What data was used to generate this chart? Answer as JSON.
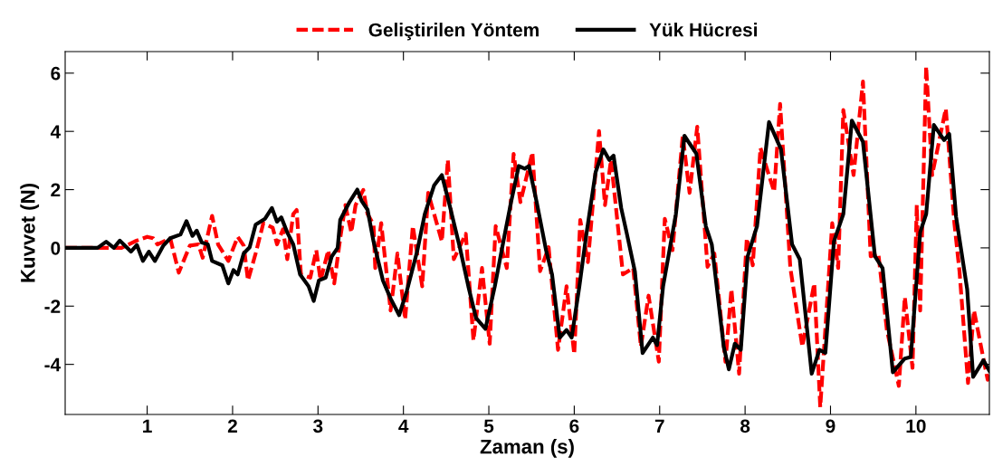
{
  "chart_data": {
    "type": "line",
    "xlabel": "Zaman (s)",
    "ylabel": "Kuvvet (N)",
    "xlim": [
      0.04,
      10.86
    ],
    "ylim": [
      -5.72,
      6.74
    ],
    "xticks": [
      1,
      2,
      3,
      4,
      5,
      6,
      7,
      8,
      9,
      10
    ],
    "yticks": [
      -4,
      -2,
      0,
      2,
      4,
      6
    ],
    "grid": false,
    "legend": "top",
    "marker": "none",
    "series": [
      {
        "name": "Geliştirilen Yöntem",
        "color": "#ff0000",
        "line_style": "dashed",
        "x": [
          0.046,
          0.7,
          0.86,
          1.0,
          1.07,
          1.12,
          1.27,
          1.37,
          1.5,
          1.6,
          1.65,
          1.76,
          1.83,
          1.95,
          2.06,
          2.13,
          2.18,
          2.27,
          2.36,
          2.47,
          2.52,
          2.59,
          2.64,
          2.71,
          2.75,
          2.8,
          2.91,
          2.98,
          3.03,
          3.12,
          3.19,
          3.26,
          3.32,
          3.39,
          3.44,
          3.53,
          3.58,
          3.65,
          3.67,
          3.74,
          3.85,
          3.93,
          4.02,
          4.11,
          4.22,
          4.29,
          4.45,
          4.52,
          4.59,
          4.73,
          4.82,
          4.92,
          5.01,
          5.08,
          5.21,
          5.29,
          5.37,
          5.51,
          5.6,
          5.7,
          5.81,
          5.91,
          6.0,
          6.07,
          6.16,
          6.29,
          6.36,
          6.43,
          6.57,
          6.69,
          6.78,
          6.87,
          6.99,
          7.06,
          7.15,
          7.27,
          7.35,
          7.44,
          7.56,
          7.64,
          7.77,
          7.84,
          7.93,
          8.02,
          8.09,
          8.18,
          8.34,
          8.41,
          8.53,
          8.67,
          8.81,
          8.88,
          9.02,
          9.09,
          9.15,
          9.27,
          9.38,
          9.47,
          9.56,
          9.66,
          9.8,
          9.87,
          9.96,
          10.01,
          10.05,
          10.12,
          10.19,
          10.35,
          10.45,
          10.51,
          10.61,
          10.68,
          10.79,
          10.84,
          10.86
        ],
        "values": [
          0,
          0,
          0.23,
          0.38,
          0.33,
          0.12,
          0.33,
          -0.85,
          0.08,
          0.12,
          -0.34,
          1.1,
          0.12,
          -0.45,
          0.38,
          0.08,
          -1.12,
          -0.19,
          0.85,
          0.69,
          0.12,
          0.64,
          -0.39,
          1.16,
          1.3,
          -0.91,
          -1.02,
          -0.08,
          -1.12,
          -0.08,
          -1.22,
          0.33,
          1.47,
          0.53,
          1.47,
          1.99,
          1.16,
          0.8,
          -0.69,
          0.85,
          -2.15,
          -0.19,
          -2.46,
          0.75,
          -1.32,
          1.89,
          0.22,
          3.02,
          -0.39,
          0.48,
          -3.18,
          -0.69,
          -3.29,
          0.75,
          -0.69,
          3.23,
          1.57,
          3.28,
          -0.8,
          0.02,
          -3.5,
          -1.32,
          -3.65,
          0.96,
          -0.49,
          4.01,
          1.47,
          3.02,
          -0.91,
          -0.69,
          -3.39,
          -1.64,
          -3.91,
          1.0,
          -0.08,
          3.85,
          1.89,
          4.16,
          -0.65,
          -0.19,
          -3.91,
          -1.42,
          -4.32,
          0.33,
          -0.6,
          3.43,
          1.93,
          4.94,
          -0.69,
          -3.39,
          -1.22,
          -5.47,
          0.85,
          -0.69,
          4.73,
          2.5,
          5.71,
          -0.29,
          -0.19,
          -2.82,
          -4.74,
          -1.69,
          -4.12,
          1.47,
          -2.15,
          6.23,
          2.5,
          4.78,
          0.85,
          -0.8,
          -4.64,
          -2.15,
          -3.8,
          -4.53,
          -4.3
        ]
      },
      {
        "name": "Yük Hücresi",
        "color": "#000000",
        "line_style": "solid",
        "x": [
          0.046,
          0.42,
          0.52,
          0.61,
          0.68,
          0.81,
          0.88,
          0.95,
          1.02,
          1.09,
          1.19,
          1.27,
          1.39,
          1.46,
          1.53,
          1.58,
          1.64,
          1.71,
          1.76,
          1.88,
          1.95,
          2.01,
          2.06,
          2.13,
          2.2,
          2.27,
          2.38,
          2.46,
          2.52,
          2.57,
          2.64,
          2.71,
          2.79,
          2.89,
          2.95,
          3.01,
          3.09,
          3.16,
          3.23,
          3.26,
          3.37,
          3.46,
          3.51,
          3.58,
          3.65,
          3.76,
          3.85,
          3.95,
          4.04,
          4.16,
          4.25,
          4.36,
          4.45,
          4.54,
          4.66,
          4.76,
          4.85,
          4.96,
          5.07,
          5.17,
          5.26,
          5.35,
          5.42,
          5.47,
          5.56,
          5.67,
          5.74,
          5.83,
          5.91,
          5.97,
          6.06,
          6.14,
          6.25,
          6.34,
          6.41,
          6.46,
          6.55,
          6.62,
          6.71,
          6.8,
          6.92,
          6.97,
          7.04,
          7.19,
          7.29,
          7.43,
          7.54,
          7.61,
          7.75,
          7.81,
          7.88,
          7.95,
          8.03,
          8.14,
          8.28,
          8.42,
          8.55,
          8.64,
          8.78,
          8.87,
          8.94,
          9.04,
          9.15,
          9.25,
          9.38,
          9.52,
          9.61,
          9.73,
          9.87,
          9.94,
          10.05,
          10.12,
          10.21,
          10.33,
          10.39,
          10.47,
          10.6,
          10.67,
          10.79,
          10.86
        ],
        "values": [
          0,
          0,
          0.21,
          0,
          0.25,
          -0.13,
          0.1,
          -0.45,
          -0.13,
          -0.45,
          0.08,
          0.33,
          0.46,
          0.92,
          0.41,
          0.59,
          0.18,
          0.12,
          -0.45,
          -0.6,
          -1.22,
          -0.76,
          -0.91,
          -0.19,
          0.02,
          0.8,
          1.0,
          1.37,
          0.9,
          1.05,
          0.53,
          0.12,
          -0.91,
          -1.32,
          -1.82,
          -1.12,
          -1.02,
          -0.3,
          0.0,
          0.96,
          1.58,
          2.0,
          1.62,
          1.31,
          0.22,
          -1.12,
          -1.74,
          -2.31,
          -1.48,
          -0.13,
          1.16,
          2.15,
          2.5,
          1.47,
          0.02,
          -1.32,
          -2.41,
          -2.78,
          -1.32,
          0.22,
          1.57,
          2.81,
          2.72,
          2.81,
          1.57,
          -0.08,
          -0.91,
          -3.08,
          -2.82,
          -3.08,
          -1.32,
          0.43,
          2.6,
          3.38,
          3.02,
          3.17,
          1.36,
          0.43,
          -0.81,
          -3.61,
          -3.08,
          -3.34,
          -1.32,
          1.16,
          3.85,
          3.23,
          0.75,
          0.12,
          -3.39,
          -4.17,
          -3.29,
          -3.5,
          -0.29,
          0.75,
          4.32,
          3.39,
          0.12,
          -0.39,
          -4.32,
          -3.5,
          -3.6,
          0.22,
          1.16,
          4.37,
          3.64,
          -0.29,
          -0.7,
          -4.27,
          -3.8,
          -3.75,
          0.54,
          1.16,
          4.22,
          3.7,
          3.91,
          1.07,
          -1.42,
          -4.43,
          -3.86,
          -4.22
        ]
      }
    ]
  }
}
